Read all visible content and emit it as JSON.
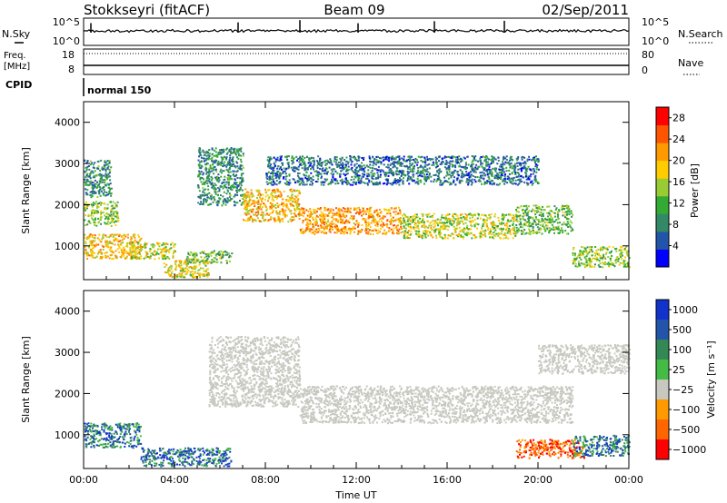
{
  "header": {
    "station": "Stokkseyri (fitACF)",
    "beam": "Beam 09",
    "date": "02/Sep/2011"
  },
  "status_panels": {
    "nsky": {
      "label": "N.Sky",
      "left_ticks": [
        "10^5",
        "10^0"
      ],
      "right_ticks": [
        "10^5",
        "10^0"
      ],
      "right_label": "N.Search"
    },
    "freq": {
      "label_line1": "Freq.",
      "label_line2": "[MHz]",
      "left_ticks": [
        "18",
        "8"
      ],
      "right_ticks": [
        "80",
        "0"
      ],
      "right_label": "Nave"
    },
    "cpid": {
      "label": "CPID",
      "mode": "normal 150"
    }
  },
  "colors": {
    "power": [
      "#0000ff",
      "#2255aa",
      "#338866",
      "#33aa33",
      "#99cc33",
      "#ffcc00",
      "#ff9900",
      "#ff5500",
      "#ff0000"
    ],
    "velocity": [
      "#1133cc",
      "#2255aa",
      "#338855",
      "#44bb44",
      "#c8c8c0",
      "#ff9900",
      "#ff6600",
      "#ff0000"
    ],
    "ground_scatter": "#c8c8c0"
  },
  "chart_data": [
    {
      "type": "heatmap",
      "panel": "power",
      "xlabel": "",
      "ylabel": "Slant Range [km]",
      "x_range_hours": [
        0,
        24
      ],
      "ylim": [
        180,
        4500
      ],
      "x_ticks": [
        "00:00",
        "04:00",
        "08:00",
        "12:00",
        "16:00",
        "20:00",
        "00:00"
      ],
      "y_ticks": [
        1000,
        2000,
        3000,
        4000
      ],
      "colorbar": {
        "label": "Power [dB]",
        "ticks": [
          4,
          8,
          12,
          16,
          20,
          24,
          28
        ],
        "range": [
          0,
          30
        ]
      },
      "regions": [
        {
          "x": [
            0.0,
            1.5
          ],
          "y": [
            1500,
            2100
          ],
          "level": 14
        },
        {
          "x": [
            0.0,
            1.2
          ],
          "y": [
            2200,
            3100
          ],
          "level": 8
        },
        {
          "x": [
            0.0,
            2.5
          ],
          "y": [
            700,
            1300
          ],
          "level": 20
        },
        {
          "x": [
            2.0,
            4.0
          ],
          "y": [
            700,
            1100
          ],
          "level": 16
        },
        {
          "x": [
            3.5,
            5.5
          ],
          "y": [
            250,
            700
          ],
          "level": 18
        },
        {
          "x": [
            4.5,
            6.5
          ],
          "y": [
            600,
            900
          ],
          "level": 12
        },
        {
          "x": [
            5.0,
            7.0
          ],
          "y": [
            2000,
            3400
          ],
          "level": 8
        },
        {
          "x": [
            7.0,
            9.5
          ],
          "y": [
            1600,
            2400
          ],
          "level": 20
        },
        {
          "x": [
            9.5,
            14.0
          ],
          "y": [
            1300,
            1950
          ],
          "level": 22
        },
        {
          "x": [
            14.0,
            19.0
          ],
          "y": [
            1200,
            1800
          ],
          "level": 16
        },
        {
          "x": [
            19.0,
            21.5
          ],
          "y": [
            1300,
            2000
          ],
          "level": 12
        },
        {
          "x": [
            21.5,
            24.0
          ],
          "y": [
            500,
            1000
          ],
          "level": 14
        },
        {
          "x": [
            8.0,
            20.0
          ],
          "y": [
            2500,
            3200
          ],
          "level": 6
        }
      ]
    },
    {
      "type": "heatmap",
      "panel": "velocity",
      "xlabel": "Time UT",
      "ylabel": "Slant Range [km]",
      "x_range_hours": [
        0,
        24
      ],
      "ylim": [
        180,
        4500
      ],
      "x_ticks": [
        "00:00",
        "04:00",
        "08:00",
        "12:00",
        "16:00",
        "20:00",
        "00:00"
      ],
      "y_ticks": [
        1000,
        2000,
        3000,
        4000
      ],
      "colorbar": {
        "label": "Velocity [m s⁻¹]",
        "ticks": [
          "1000",
          "500",
          "100",
          "25",
          "−25",
          "−100",
          "−500",
          "−1000"
        ]
      },
      "regions": [
        {
          "x": [
            0.0,
            2.5
          ],
          "y": [
            700,
            1300
          ],
          "class": "toward"
        },
        {
          "x": [
            2.5,
            6.5
          ],
          "y": [
            250,
            700
          ],
          "class": "toward"
        },
        {
          "x": [
            5.5,
            9.5
          ],
          "y": [
            1700,
            3400
          ],
          "class": "ground"
        },
        {
          "x": [
            9.5,
            21.5
          ],
          "y": [
            1300,
            2200
          ],
          "class": "ground"
        },
        {
          "x": [
            19.0,
            22.0
          ],
          "y": [
            450,
            900
          ],
          "class": "away"
        },
        {
          "x": [
            21.5,
            24.0
          ],
          "y": [
            500,
            1000
          ],
          "class": "toward"
        },
        {
          "x": [
            20.0,
            24.0
          ],
          "y": [
            2500,
            3200
          ],
          "class": "ground"
        }
      ]
    }
  ]
}
